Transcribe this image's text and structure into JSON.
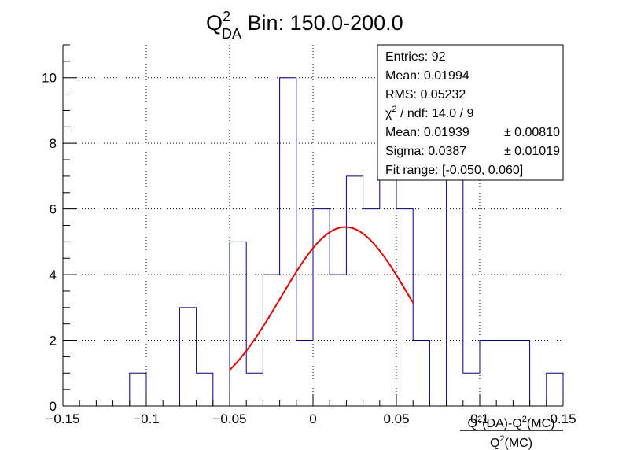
{
  "chart_data": {
    "type": "histogram",
    "title": {
      "main": "Q",
      "sup": "2",
      "sub": "DA",
      "rest": " Bin: 150.0-200.0"
    },
    "xlabel": {
      "num": "Q^2(DA)-Q^2(MC)",
      "num_parts": [
        "Q",
        "2",
        "(DA)-Q",
        "2",
        "(MC)"
      ],
      "den_parts": [
        "Q",
        "2",
        "(MC)"
      ]
    },
    "ylabel": "",
    "xlim": [
      -0.15,
      0.15
    ],
    "ylim": [
      0,
      11
    ],
    "x_tick_labels": [
      "−0.15",
      "−0.1",
      "−0.05",
      "0",
      "0.05",
      "0.1",
      "0.15"
    ],
    "x_ticks": [
      -0.15,
      -0.1,
      -0.05,
      0,
      0.05,
      0.1,
      0.15
    ],
    "y_tick_labels": [
      "0",
      "2",
      "4",
      "6",
      "8",
      "10"
    ],
    "y_ticks": [
      0,
      2,
      4,
      6,
      8,
      10
    ],
    "grid": true,
    "bin_edges_start": -0.15,
    "bin_width": 0.01,
    "counts": [
      0,
      0,
      0,
      0,
      1,
      0,
      0,
      3,
      1,
      0,
      5,
      1,
      4,
      10,
      2,
      6,
      4,
      7,
      6,
      7,
      6,
      2,
      0,
      7,
      1,
      2,
      2,
      2,
      0,
      1
    ],
    "histogram_color": "#000080",
    "fit": {
      "function": "gaus",
      "color": "#e00000",
      "constant": 5.45,
      "mean": 0.01939,
      "sigma": 0.0387,
      "range": [
        -0.05,
        0.06
      ]
    },
    "stats_box": {
      "lines": [
        {
          "label": "Entries: 92"
        },
        {
          "label": "Mean: 0.01994"
        },
        {
          "label": "RMS: 0.05232"
        },
        {
          "label": "χ",
          "sup": "2",
          "rest": " / ndf: 14.0 / 9"
        },
        {
          "label": "Mean: 0.01939",
          "err": "± 0.00810"
        },
        {
          "label": "Sigma: 0.0387",
          "err": "± 0.01019"
        },
        {
          "label": "Fit range: [-0.050, 0.060]"
        }
      ]
    }
  }
}
